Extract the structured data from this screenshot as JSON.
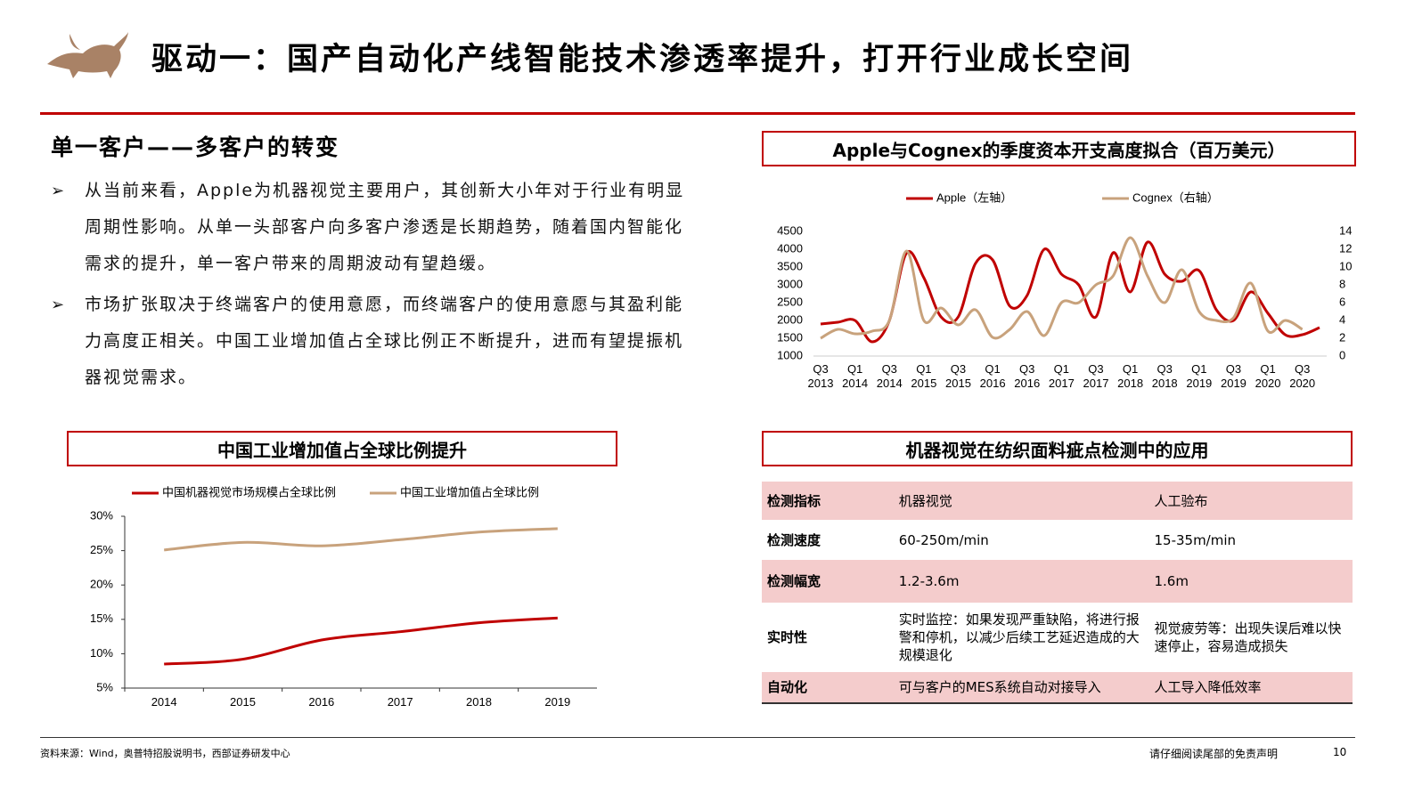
{
  "header": {
    "title": "驱动一：国产自动化产线智能技术渗透率提升，打开行业成长空间"
  },
  "section": {
    "heading": "单一客户——多客户的转变",
    "bullets": [
      "从当前来看，Apple为机器视觉主要用户，其创新大小年对于行业有明显周期性影响。从单一头部客户向多客户渗透是长期趋势，随着国内智能化需求的提升，单一客户带来的周期波动有望趋缓。",
      "市场扩张取决于终端客户的使用意愿，而终端客户的使用意愿与其盈利能力高度正相关。中国工业增加值占全球比例正不断提升，进而有望提振机器视觉需求。"
    ]
  },
  "charts": [
    {
      "type": "line",
      "title": "Apple与Cognex的季度资本开支高度拟合（百万美元）",
      "categories": [
        "Q3 2013",
        null,
        "Q1 2014",
        null,
        "Q3 2014",
        null,
        "Q1 2015",
        null,
        "Q3 2015",
        null,
        "Q1 2016",
        null,
        "Q3 2016",
        null,
        "Q1 2017",
        null,
        "Q3 2017",
        null,
        "Q1 2018",
        null,
        "Q3 2018",
        null,
        "Q1 2019",
        null,
        "Q3 2019",
        null,
        "Q1 2020",
        null,
        "Q3 2020",
        null
      ],
      "series": [
        {
          "name": "Apple（左轴）",
          "color": "#c00000",
          "values": [
            1900,
            1950,
            2000,
            1400,
            2000,
            3900,
            3200,
            2100,
            2100,
            3600,
            3700,
            2400,
            2700,
            4000,
            3300,
            3000,
            2100,
            3900,
            2800,
            4200,
            3300,
            3100,
            3400,
            2300,
            2000,
            2800,
            2200,
            1600,
            1600,
            1800
          ]
        },
        {
          "name": "Cognex（右轴）",
          "color": "#c8a27c",
          "axis": "y2",
          "values": [
            2,
            3,
            2.5,
            2.8,
            4,
            11.8,
            4,
            5.4,
            3.5,
            5.2,
            2.1,
            3,
            5,
            2.3,
            6,
            6,
            8,
            9,
            13.3,
            9,
            6,
            9.7,
            5,
            4,
            4.3,
            8.2,
            2.8,
            4,
            3,
            null
          ]
        }
      ],
      "ylim": [
        1000,
        4500
      ],
      "yticks": [
        1000,
        1500,
        2000,
        2500,
        3000,
        3500,
        4000,
        4500
      ],
      "y2lim": [
        0,
        14
      ],
      "y2ticks": [
        0,
        2,
        4,
        6,
        8,
        10,
        12,
        14
      ],
      "legend": "top"
    },
    {
      "type": "line",
      "title": "中国工业增加值占全球比例提升",
      "categories": [
        "2014",
        "2015",
        "2016",
        "2017",
        "2018",
        "2019"
      ],
      "series": [
        {
          "name": "中国机器视觉市场规模占全球比例",
          "color": "#c00000",
          "values": [
            8.5,
            9.2,
            12.0,
            13.2,
            14.5,
            15.2
          ]
        },
        {
          "name": "中国工业增加值占全球比例",
          "color": "#c8a27c",
          "values": [
            25.1,
            26.2,
            25.7,
            26.6,
            27.7,
            28.2
          ]
        }
      ],
      "ylim": [
        5,
        30
      ],
      "yticks": [
        {
          "value": 5,
          "label": "5%"
        },
        {
          "value": 10,
          "label": "10%"
        },
        {
          "value": 15,
          "label": "15%"
        },
        {
          "value": 20,
          "label": "20%"
        },
        {
          "value": 25,
          "label": "25%"
        },
        {
          "value": 30,
          "label": "30%"
        }
      ],
      "legend": "top"
    }
  ],
  "table": {
    "title": "机器视觉在纺织面料疵点检测中的应用",
    "rows": [
      [
        "检测指标",
        "机器视觉",
        "人工验布"
      ],
      [
        "检测速度",
        "60-250m/min",
        "15-35m/min"
      ],
      [
        "检测幅宽",
        "1.2-3.6m",
        "1.6m"
      ],
      [
        "实时性",
        "实时监控：如果发现严重缺陷，将进行报警和停机，以减少后续工艺延迟造成的大规模退化",
        "视觉疲劳等：出现失误后难以快速停止，容易造成损失"
      ],
      [
        "自动化",
        "可与客户的MES系统自动对接导入",
        "人工导入降低效率"
      ]
    ]
  },
  "footer": {
    "source": "资料来源：Wind，奥普特招股说明书，西部证券研发中心",
    "disclaimer": "请仔细阅读尾部的免责声明",
    "page": 10
  }
}
